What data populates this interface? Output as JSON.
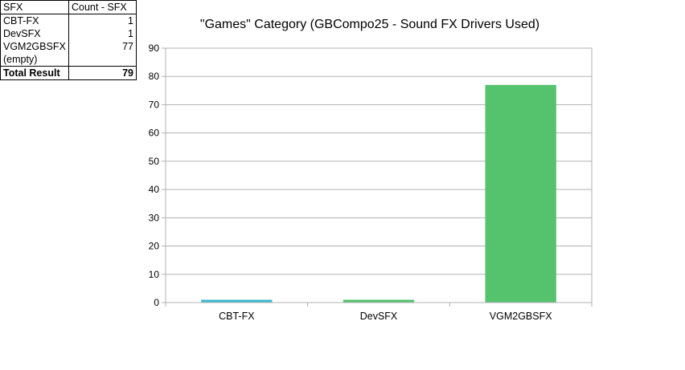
{
  "pivot_table": {
    "header": [
      "SFX",
      "Count - SFX"
    ],
    "rows": [
      {
        "label": "CBT-FX",
        "value": "1"
      },
      {
        "label": "DevSFX",
        "value": "1"
      },
      {
        "label": "VGM2GBSFX",
        "value": "77"
      },
      {
        "label": "(empty)",
        "value": ""
      }
    ],
    "total": {
      "label": "Total Result",
      "value": "79"
    }
  },
  "chart_data": {
    "type": "bar",
    "title": "\"Games\" Category  (GBCompo25 - Sound FX Drivers Used)",
    "categories": [
      "CBT-FX",
      "DevSFX",
      "VGM2GBSFX"
    ],
    "values": [
      1,
      1,
      77
    ],
    "colors": [
      "#3db8cf",
      "#55c26e",
      "#55c26e"
    ],
    "ylim": [
      0,
      90
    ],
    "yticks": [
      0,
      10,
      20,
      30,
      40,
      50,
      60,
      70,
      80,
      90
    ],
    "xlabel": "",
    "ylabel": "",
    "grid": true,
    "legend": "none"
  }
}
